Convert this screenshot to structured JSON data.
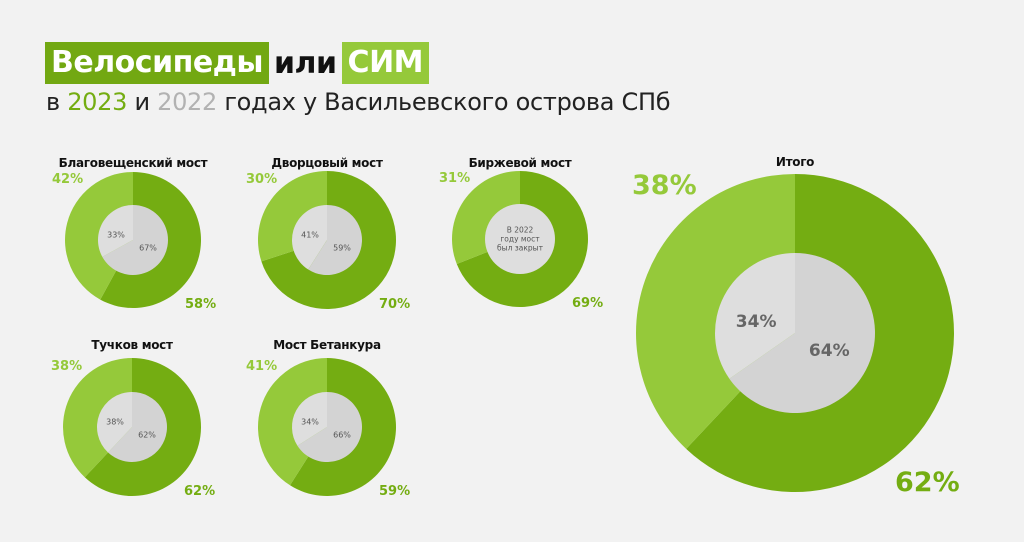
{
  "header": {
    "title_part1": "Велосипеды",
    "title_or": "или",
    "title_part2": "СИМ",
    "subtitle_prefix": "в",
    "subtitle_year_2023": "2023",
    "subtitle_and": "и",
    "subtitle_year_2022": "2022",
    "subtitle_suffix": "годах у Васильевского острова СПб"
  },
  "colors": {
    "background": "#f2f2f2",
    "bikes_2023": "#74ad12",
    "sim_2023": "#95c93a",
    "bikes_2022": "#d3d3d3",
    "sim_2022": "#dedede",
    "year_2023_text": "#74ad12",
    "year_2022_text": "#b2b2b2"
  },
  "chart_data": [
    {
      "type": "pie",
      "title": "Благовещенский мост",
      "outer_ring_2023": {
        "categories": [
          "СИМ",
          "Велосипеды"
        ],
        "values": [
          42,
          58
        ],
        "labels": [
          "42%",
          "58%"
        ]
      },
      "inner_pie_2022": {
        "categories": [
          "СИМ",
          "Велосипеды"
        ],
        "values": [
          33,
          67
        ],
        "labels": [
          "33%",
          "67%"
        ]
      }
    },
    {
      "type": "pie",
      "title": "Дворцовый мост",
      "outer_ring_2023": {
        "categories": [
          "СИМ",
          "Велосипеды"
        ],
        "values": [
          30,
          70
        ],
        "labels": [
          "30%",
          "70%"
        ]
      },
      "inner_pie_2022": {
        "categories": [
          "СИМ",
          "Велосипеды"
        ],
        "values": [
          41,
          59
        ],
        "labels": [
          "41%",
          "59%"
        ]
      }
    },
    {
      "type": "pie",
      "title": "Биржевой мост",
      "outer_ring_2023": {
        "categories": [
          "СИМ",
          "Велосипеды"
        ],
        "values": [
          31,
          69
        ],
        "labels": [
          "31%",
          "69%"
        ]
      },
      "inner_pie_2022": null,
      "inner_note": [
        "В 2022",
        "году мост",
        "был закрыт"
      ]
    },
    {
      "type": "pie",
      "title": "Тучков мост",
      "outer_ring_2023": {
        "categories": [
          "СИМ",
          "Велосипеды"
        ],
        "values": [
          38,
          62
        ],
        "labels": [
          "38%",
          "62%"
        ]
      },
      "inner_pie_2022": {
        "categories": [
          "СИМ",
          "Велосипеды"
        ],
        "values": [
          38,
          62
        ],
        "labels": [
          "38%",
          "62%"
        ]
      }
    },
    {
      "type": "pie",
      "title": "Мост Бетанкура",
      "outer_ring_2023": {
        "categories": [
          "СИМ",
          "Велосипеды"
        ],
        "values": [
          41,
          59
        ],
        "labels": [
          "41%",
          "59%"
        ]
      },
      "inner_pie_2022": {
        "categories": [
          "СИМ",
          "Велосипеды"
        ],
        "values": [
          34,
          66
        ],
        "labels": [
          "34%",
          "66%"
        ]
      }
    },
    {
      "type": "pie",
      "title": "Итого",
      "outer_ring_2023": {
        "categories": [
          "СИМ",
          "Велосипеды"
        ],
        "values": [
          38,
          62
        ],
        "labels": [
          "38%",
          "62%"
        ]
      },
      "inner_pie_2022": {
        "categories": [
          "СИМ",
          "Велосипеды"
        ],
        "values": [
          34,
          64
        ],
        "labels": [
          "34%",
          "64%"
        ]
      }
    }
  ]
}
